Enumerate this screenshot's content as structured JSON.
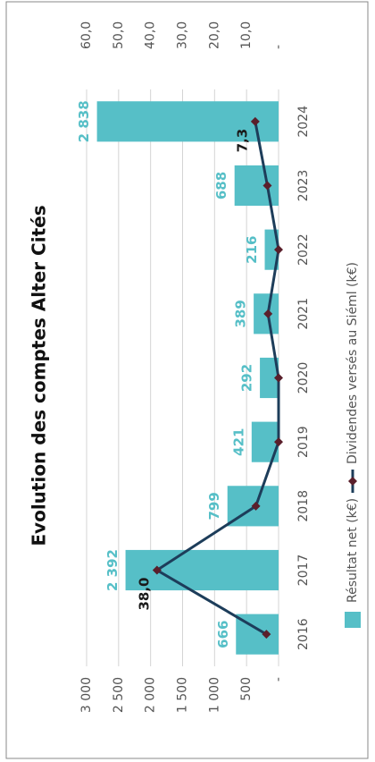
{
  "chart_data": {
    "type": "bar-line",
    "title": "Evolution des comptes Alter Cités",
    "categories": [
      "2016",
      "2017",
      "2018",
      "2019",
      "2020",
      "2021",
      "2022",
      "2023",
      "2024"
    ],
    "series": [
      {
        "name": "Résultat net (k€)",
        "type": "bar",
        "color": "#56bfc7",
        "values": [
          666,
          2392,
          799,
          421,
          292,
          389,
          216,
          688,
          2838
        ],
        "value_labels": [
          "666",
          "2 392",
          "799",
          "421",
          "292",
          "389",
          "216",
          "688",
          "2 838"
        ]
      },
      {
        "name": "Dividendes versés au Siéml (k€)",
        "type": "line",
        "axis": "y2",
        "color": "#1d3d5a",
        "marker_color": "#5a1f2b",
        "values": [
          3.8,
          38.0,
          7.1,
          0,
          0,
          3.3,
          0,
          3.5,
          7.3
        ],
        "value_labels": [
          null,
          "38,0",
          null,
          null,
          null,
          null,
          null,
          null,
          "7,3"
        ]
      }
    ],
    "ylim": [
      0,
      3000
    ],
    "yticks": [
      {
        "value": 0,
        "label": "-"
      },
      500,
      {
        "value": 1000,
        "label": "1 000"
      },
      {
        "value": 1500,
        "label": "1 500"
      },
      {
        "value": 2000,
        "label": "2 000"
      },
      {
        "value": 2500,
        "label": "2 500"
      },
      {
        "value": 3000,
        "label": "3 000"
      }
    ],
    "y2lim": [
      0,
      60
    ],
    "y2ticks": [
      {
        "value": 0,
        "label": "-"
      },
      {
        "value": 10,
        "label": "10,0"
      },
      {
        "value": 20,
        "label": "20,0"
      },
      {
        "value": 30,
        "label": "30,0"
      },
      {
        "value": 40,
        "label": "40,0"
      },
      {
        "value": 50,
        "label": "50,0"
      },
      {
        "value": 60,
        "label": "60,0"
      }
    ],
    "grid": true,
    "legend": "bottom",
    "rotated": true
  }
}
